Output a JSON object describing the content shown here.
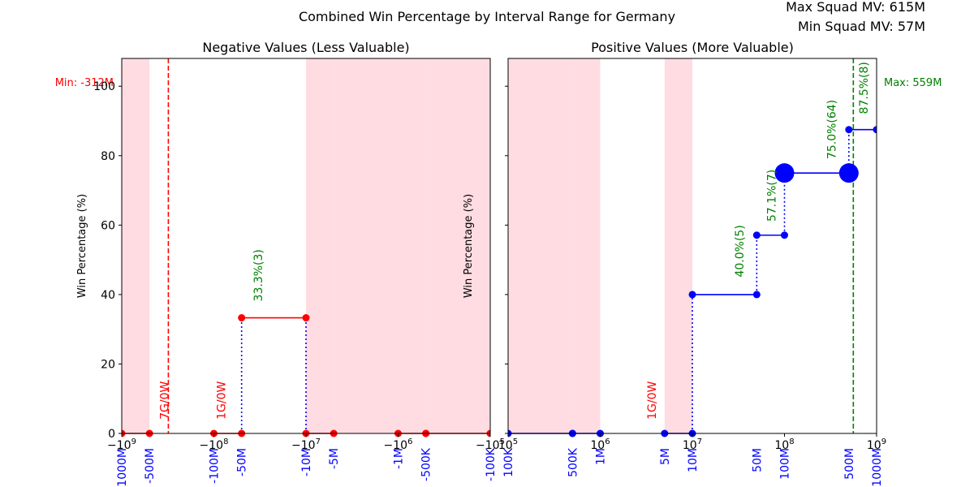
{
  "figure": {
    "title": "Combined Win Percentage by Interval Range for Germany",
    "info_max": "Max Squad MV: 615M",
    "info_min": "Min Squad MV: 57M"
  },
  "colors": {
    "neg_series": "#ff0000",
    "pos_series": "#0000ff",
    "shade": "#ffc0cb",
    "pct_label": "#008000",
    "games_label": "#ff0000",
    "min_line": "#ff0000",
    "max_line": "#008000",
    "tick_label_custom": "#0000ff"
  },
  "chart_data": [
    {
      "type": "line",
      "title": "Negative Values (Less Valuable)",
      "ylabel": "Win Percentage (%)",
      "xscale": "symlog",
      "xlim": [
        -1000000000,
        -100000
      ],
      "ylim": [
        0,
        108
      ],
      "yticks": [
        0,
        20,
        40,
        60,
        80,
        100
      ],
      "xticks": [
        {
          "value": -1000000000,
          "label": "−10^9"
        },
        {
          "value": -100000000,
          "label": "−10^8"
        },
        {
          "value": -10000000,
          "label": "−10^7"
        },
        {
          "value": -1000000,
          "label": "−10^6"
        },
        {
          "value": -100000,
          "label": "−10^5"
        }
      ],
      "custom_ticks": [
        {
          "value": -1000000000,
          "label": "-1000M"
        },
        {
          "value": -500000000,
          "label": "-500M"
        },
        {
          "value": -100000000,
          "label": "-100M"
        },
        {
          "value": -50000000,
          "label": "-50M"
        },
        {
          "value": -10000000,
          "label": "-10M"
        },
        {
          "value": -5000000,
          "label": "-5M"
        },
        {
          "value": -1000000,
          "label": "-1M"
        },
        {
          "value": -500000,
          "label": "-500K"
        },
        {
          "value": -100000,
          "label": "-100K"
        }
      ],
      "shaded_ranges": [
        [
          -1000000000,
          -500000000
        ],
        [
          -10000000,
          -5000000
        ],
        [
          -5000000,
          -1000000
        ],
        [
          -1000000,
          -500000
        ],
        [
          -500000,
          -100000
        ]
      ],
      "segments": [
        {
          "x0": -1000000000,
          "x1": -500000000,
          "y": 0
        },
        {
          "x0": -100000000,
          "x1": -50000000,
          "y": 0
        },
        {
          "x0": -50000000,
          "x1": -10000000,
          "y": 33.3
        },
        {
          "x0": -10000000,
          "x1": -5000000,
          "y": 0
        },
        {
          "x0": -1000000,
          "x1": -500000,
          "y": 0
        },
        {
          "x0": -500000,
          "x1": -100000,
          "y": 0
        }
      ],
      "vertical_dotted": [
        {
          "x": -50000000,
          "y0": 0,
          "y1": 33.3
        },
        {
          "x": -10000000,
          "y0": 0,
          "y1": 33.3
        }
      ],
      "big_markers": [],
      "pct_labels": [
        {
          "x": -30000000,
          "y": 38,
          "text": "33.3%(3)"
        }
      ],
      "game_labels": [
        {
          "x": -310000000,
          "y": 4,
          "text": "7G/0W"
        },
        {
          "x": -75000000,
          "y": 4,
          "text": "1G/0W"
        }
      ],
      "ref_line": {
        "x": -312000000,
        "label": "Min: -312M",
        "side": "left"
      },
      "show_yticklabels": true
    },
    {
      "type": "line",
      "title": "Positive Values (More Valuable)",
      "ylabel": "Win Percentage (%)",
      "xscale": "symlog",
      "xlim": [
        100000,
        1000000000
      ],
      "ylim": [
        0,
        108
      ],
      "yticks": [
        0,
        20,
        40,
        60,
        80,
        100
      ],
      "xticks": [
        {
          "value": 100000,
          "label": "10^5"
        },
        {
          "value": 1000000,
          "label": "10^6"
        },
        {
          "value": 10000000,
          "label": "10^7"
        },
        {
          "value": 100000000,
          "label": "10^8"
        },
        {
          "value": 1000000000,
          "label": "10^9"
        }
      ],
      "custom_ticks": [
        {
          "value": 100000,
          "label": "100K"
        },
        {
          "value": 500000,
          "label": "500K"
        },
        {
          "value": 1000000,
          "label": "1M"
        },
        {
          "value": 5000000,
          "label": "5M"
        },
        {
          "value": 10000000,
          "label": "10M"
        },
        {
          "value": 50000000,
          "label": "50M"
        },
        {
          "value": 100000000,
          "label": "100M"
        },
        {
          "value": 500000000,
          "label": "500M"
        },
        {
          "value": 1000000000,
          "label": "1000M"
        }
      ],
      "shaded_ranges": [
        [
          100000,
          500000
        ],
        [
          500000,
          1000000
        ],
        [
          5000000,
          10000000
        ]
      ],
      "segments": [
        {
          "x0": 100000,
          "x1": 500000,
          "y": 0
        },
        {
          "x0": 500000,
          "x1": 1000000,
          "y": 0
        },
        {
          "x0": 5000000,
          "x1": 10000000,
          "y": 0
        },
        {
          "x0": 10000000,
          "x1": 50000000,
          "y": 40.0
        },
        {
          "x0": 50000000,
          "x1": 100000000,
          "y": 57.1
        },
        {
          "x0": 100000000,
          "x1": 500000000,
          "y": 75.0
        },
        {
          "x0": 500000000,
          "x1": 1000000000,
          "y": 87.5
        }
      ],
      "vertical_dotted": [
        {
          "x": 10000000,
          "y0": 0,
          "y1": 40.0
        },
        {
          "x": 50000000,
          "y0": 40.0,
          "y1": 57.1
        },
        {
          "x": 100000000,
          "y0": 57.1,
          "y1": 75.0
        },
        {
          "x": 500000000,
          "y0": 75.0,
          "y1": 87.5
        }
      ],
      "big_markers": [
        {
          "x": 100000000,
          "y": 75.0
        },
        {
          "x": 500000000,
          "y": 75.0
        }
      ],
      "pct_labels": [
        {
          "x": 36000000,
          "y": 45,
          "text": "40.0%(5)"
        },
        {
          "x": 80000000,
          "y": 61,
          "text": "57.1%(7)"
        },
        {
          "x": 360000000,
          "y": 79,
          "text": "75.0%(64)"
        },
        {
          "x": 800000000,
          "y": 92,
          "text": "87.5%(8)"
        }
      ],
      "game_labels": [
        {
          "x": 4000000,
          "y": 4,
          "text": "1G/0W"
        }
      ],
      "ref_line": {
        "x": 559000000,
        "label": "Max: 559M",
        "side": "right"
      },
      "show_yticklabels": false
    }
  ]
}
